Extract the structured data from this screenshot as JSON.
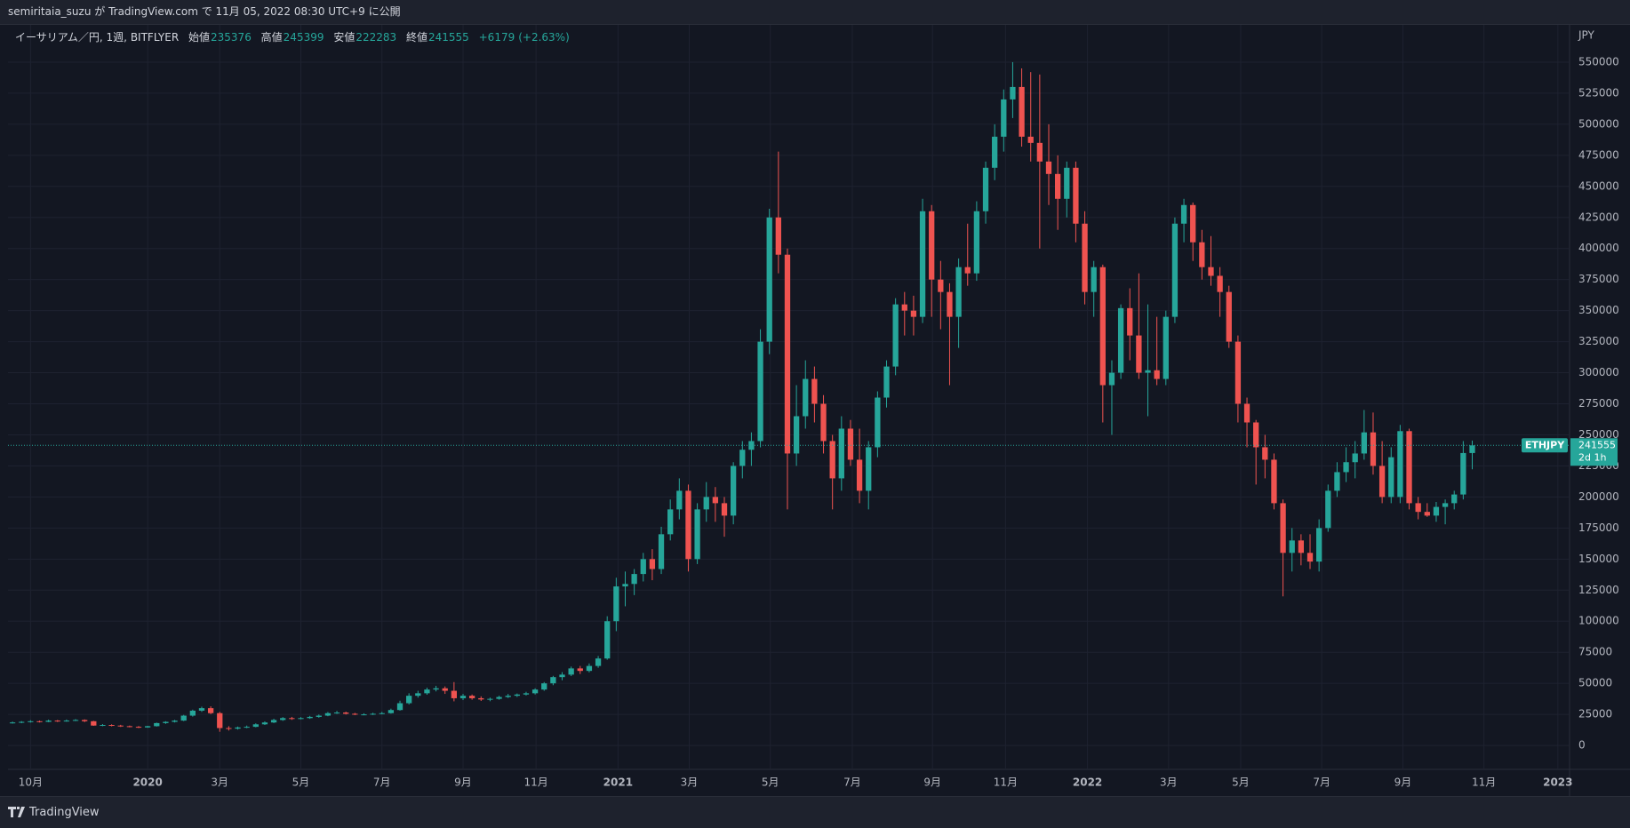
{
  "header": {
    "text": "semiritaia_suzu が TradingView.com で 11月 05, 2022 08:30 UTC+9 に公開"
  },
  "legend": {
    "symbol": "イーサリアム／円, 1週, BITFLYER",
    "open_label": "始値",
    "high_label": "高値",
    "low_label": "安値",
    "close_label": "終値",
    "change": "+6179",
    "change_pct": "(+2.63%)"
  },
  "footer": {
    "brand": "TradingView"
  },
  "chart_data": {
    "type": "candlestick",
    "ticker": "ETHJPY",
    "countdown": "2d 1h",
    "y_unit": "JPY",
    "up_color": "#26a69a",
    "down_color": "#ef5350",
    "ylim": [
      -19250,
      580000
    ],
    "yticks": [
      0,
      25000,
      50000,
      75000,
      100000,
      125000,
      150000,
      175000,
      200000,
      225000,
      250000,
      275000,
      300000,
      325000,
      350000,
      375000,
      400000,
      425000,
      450000,
      475000,
      500000,
      525000,
      550000
    ],
    "xlim": [
      -0.5,
      172.8
    ],
    "xticks": [
      {
        "value": 2.0,
        "label": "10月"
      },
      {
        "value": 15.0,
        "label": "2020"
      },
      {
        "value": 23.0,
        "label": "3月"
      },
      {
        "value": 32.0,
        "label": "5月"
      },
      {
        "value": 41.0,
        "label": "7月"
      },
      {
        "value": 50.0,
        "label": "9月"
      },
      {
        "value": 58.1,
        "label": "11月"
      },
      {
        "value": 67.2,
        "label": "2021"
      },
      {
        "value": 75.1,
        "label": "3月"
      },
      {
        "value": 84.1,
        "label": "5月"
      },
      {
        "value": 93.2,
        "label": "7月"
      },
      {
        "value": 102.1,
        "label": "9月"
      },
      {
        "value": 110.2,
        "label": "11月"
      },
      {
        "value": 119.3,
        "label": "2022"
      },
      {
        "value": 128.3,
        "label": "3月"
      },
      {
        "value": 136.3,
        "label": "5月"
      },
      {
        "value": 145.3,
        "label": "7月"
      },
      {
        "value": 154.3,
        "label": "9月"
      },
      {
        "value": 163.3,
        "label": "11月"
      },
      {
        "value": 171.5,
        "label": "2023"
      }
    ],
    "grid": true,
    "ohlc": [
      [
        18000,
        19200,
        17600,
        18500
      ],
      [
        18500,
        19600,
        17900,
        19000
      ],
      [
        19000,
        20300,
        18400,
        19500
      ],
      [
        19500,
        20000,
        18500,
        19000
      ],
      [
        19000,
        20800,
        18700,
        20000
      ],
      [
        20000,
        20500,
        18900,
        19500
      ],
      [
        19500,
        20900,
        19100,
        20000
      ],
      [
        20000,
        21200,
        19600,
        20500
      ],
      [
        20500,
        21000,
        18800,
        19500
      ],
      [
        19500,
        19800,
        15800,
        16000
      ],
      [
        16000,
        17200,
        15500,
        16500
      ],
      [
        16500,
        17000,
        15400,
        16000
      ],
      [
        16000,
        16600,
        14900,
        15500
      ],
      [
        15500,
        16000,
        14600,
        15000
      ],
      [
        15000,
        15600,
        14000,
        14500
      ],
      [
        14500,
        15800,
        14200,
        15500
      ],
      [
        15500,
        18400,
        15200,
        18000
      ],
      [
        18000,
        19500,
        17400,
        19000
      ],
      [
        19000,
        20600,
        18500,
        20000
      ],
      [
        20000,
        24600,
        19600,
        24000
      ],
      [
        24000,
        28800,
        23200,
        28000
      ],
      [
        28000,
        31200,
        27000,
        30000
      ],
      [
        30000,
        31500,
        25200,
        26000
      ],
      [
        26000,
        27000,
        11000,
        14000
      ],
      [
        14000,
        15500,
        12000,
        13500
      ],
      [
        13500,
        15200,
        12800,
        14500
      ],
      [
        14500,
        16000,
        13900,
        15000
      ],
      [
        15000,
        17800,
        14600,
        17000
      ],
      [
        17000,
        19400,
        16500,
        18500
      ],
      [
        18500,
        21500,
        18000,
        20500
      ],
      [
        20500,
        22800,
        19800,
        22000
      ],
      [
        22000,
        23000,
        20600,
        21500
      ],
      [
        21500,
        22800,
        21000,
        22000
      ],
      [
        22000,
        23800,
        21400,
        23000
      ],
      [
        23000,
        24900,
        22300,
        24000
      ],
      [
        24000,
        26900,
        23500,
        26000
      ],
      [
        26000,
        27800,
        25400,
        26500
      ],
      [
        26500,
        27200,
        24900,
        25500
      ],
      [
        25500,
        26200,
        24400,
        25000
      ],
      [
        25000,
        25900,
        24300,
        25000
      ],
      [
        25000,
        26300,
        24500,
        25500
      ],
      [
        25500,
        27000,
        25000,
        26000
      ],
      [
        26000,
        29600,
        25600,
        28500
      ],
      [
        28500,
        36000,
        28000,
        34000
      ],
      [
        34000,
        42000,
        33000,
        40000
      ],
      [
        40000,
        44000,
        38500,
        42000
      ],
      [
        42000,
        46500,
        40800,
        45000
      ],
      [
        45000,
        48000,
        43500,
        46000
      ],
      [
        46000,
        47500,
        41500,
        44000
      ],
      [
        44000,
        51000,
        35500,
        38000
      ],
      [
        38000,
        41500,
        36500,
        40000
      ],
      [
        40000,
        41000,
        36800,
        38000
      ],
      [
        38000,
        39500,
        35800,
        37000
      ],
      [
        37000,
        38500,
        35600,
        37500
      ],
      [
        37500,
        40000,
        36800,
        39000
      ],
      [
        39000,
        41500,
        38200,
        40000
      ],
      [
        40000,
        41800,
        39000,
        41000
      ],
      [
        41000,
        43200,
        40200,
        42000
      ],
      [
        42000,
        46000,
        41000,
        45000
      ],
      [
        45000,
        51000,
        44000,
        50000
      ],
      [
        50000,
        56000,
        48500,
        55000
      ],
      [
        55000,
        59000,
        52500,
        57000
      ],
      [
        57000,
        63500,
        55800,
        62000
      ],
      [
        62000,
        64000,
        57500,
        60000
      ],
      [
        60000,
        66000,
        58800,
        64000
      ],
      [
        64000,
        72000,
        62500,
        70000
      ],
      [
        70000,
        104000,
        69000,
        100000
      ],
      [
        100000,
        135000,
        92000,
        128000
      ],
      [
        128000,
        140000,
        112000,
        130000
      ],
      [
        130000,
        142000,
        121000,
        138000
      ],
      [
        138000,
        155000,
        132000,
        150000
      ],
      [
        150000,
        158000,
        133000,
        142000
      ],
      [
        142000,
        176000,
        138000,
        170000
      ],
      [
        170000,
        198000,
        165000,
        190000
      ],
      [
        190000,
        215000,
        182000,
        205000
      ],
      [
        205000,
        210000,
        140000,
        150000
      ],
      [
        150000,
        195000,
        146000,
        190000
      ],
      [
        190000,
        212000,
        180000,
        200000
      ],
      [
        200000,
        208000,
        180000,
        195000
      ],
      [
        195000,
        200000,
        168000,
        185000
      ],
      [
        185000,
        228000,
        178000,
        225000
      ],
      [
        225000,
        245000,
        215000,
        238000
      ],
      [
        238000,
        252000,
        225000,
        245000
      ],
      [
        245000,
        335000,
        240000,
        325000
      ],
      [
        325000,
        432000,
        315000,
        425000
      ],
      [
        425000,
        478000,
        380000,
        395000
      ],
      [
        395000,
        400000,
        190000,
        235000
      ],
      [
        235000,
        290000,
        225000,
        265000
      ],
      [
        265000,
        310000,
        255000,
        295000
      ],
      [
        295000,
        305000,
        260000,
        275000
      ],
      [
        275000,
        282000,
        235000,
        245000
      ],
      [
        245000,
        250000,
        190000,
        215000
      ],
      [
        215000,
        265000,
        205000,
        255000
      ],
      [
        255000,
        262000,
        225000,
        230000
      ],
      [
        230000,
        255000,
        195000,
        205000
      ],
      [
        205000,
        245000,
        190000,
        240000
      ],
      [
        240000,
        285000,
        232000,
        280000
      ],
      [
        280000,
        310000,
        272000,
        305000
      ],
      [
        305000,
        360000,
        298000,
        355000
      ],
      [
        355000,
        365000,
        330000,
        350000
      ],
      [
        350000,
        362000,
        330000,
        345000
      ],
      [
        345000,
        440000,
        340000,
        430000
      ],
      [
        430000,
        435000,
        345000,
        375000
      ],
      [
        375000,
        390000,
        335000,
        365000
      ],
      [
        365000,
        372000,
        290000,
        345000
      ],
      [
        345000,
        392000,
        320000,
        385000
      ],
      [
        385000,
        420000,
        370000,
        380000
      ],
      [
        380000,
        438000,
        374000,
        430000
      ],
      [
        430000,
        470000,
        420000,
        465000
      ],
      [
        465000,
        500000,
        455000,
        490000
      ],
      [
        490000,
        528000,
        478000,
        520000
      ],
      [
        520000,
        550000,
        505000,
        530000
      ],
      [
        530000,
        545000,
        482000,
        490000
      ],
      [
        490000,
        542000,
        470000,
        485000
      ],
      [
        485000,
        540000,
        400000,
        470000
      ],
      [
        470000,
        500000,
        435000,
        460000
      ],
      [
        460000,
        475000,
        415000,
        440000
      ],
      [
        440000,
        470000,
        425000,
        465000
      ],
      [
        465000,
        470000,
        405000,
        420000
      ],
      [
        420000,
        430000,
        355000,
        365000
      ],
      [
        365000,
        390000,
        345000,
        385000
      ],
      [
        385000,
        387000,
        260000,
        290000
      ],
      [
        290000,
        310000,
        250000,
        300000
      ],
      [
        300000,
        355000,
        295000,
        352000
      ],
      [
        352000,
        368000,
        310000,
        330000
      ],
      [
        330000,
        380000,
        295000,
        300000
      ],
      [
        300000,
        355000,
        265000,
        302000
      ],
      [
        302000,
        345000,
        290000,
        295000
      ],
      [
        295000,
        350000,
        290000,
        345000
      ],
      [
        345000,
        425000,
        340000,
        420000
      ],
      [
        420000,
        440000,
        405000,
        435000
      ],
      [
        435000,
        437000,
        390000,
        405000
      ],
      [
        405000,
        415000,
        375000,
        385000
      ],
      [
        385000,
        410000,
        370000,
        378000
      ],
      [
        378000,
        385000,
        345000,
        365000
      ],
      [
        365000,
        370000,
        320000,
        325000
      ],
      [
        325000,
        330000,
        260000,
        275000
      ],
      [
        275000,
        280000,
        240000,
        260000
      ],
      [
        260000,
        262000,
        210000,
        240000
      ],
      [
        240000,
        250000,
        215000,
        230000
      ],
      [
        230000,
        235000,
        190000,
        195000
      ],
      [
        195000,
        198000,
        120000,
        155000
      ],
      [
        155000,
        175000,
        140000,
        165000
      ],
      [
        165000,
        170000,
        145000,
        155000
      ],
      [
        155000,
        170000,
        142000,
        148000
      ],
      [
        148000,
        182000,
        140000,
        175000
      ],
      [
        175000,
        210000,
        172000,
        205000
      ],
      [
        205000,
        228000,
        200000,
        220000
      ],
      [
        220000,
        240000,
        212000,
        228000
      ],
      [
        228000,
        245000,
        215000,
        235000
      ],
      [
        235000,
        270000,
        230000,
        252000
      ],
      [
        252000,
        268000,
        218000,
        225000
      ],
      [
        225000,
        245000,
        195000,
        200000
      ],
      [
        200000,
        240000,
        195000,
        232000
      ],
      [
        200000,
        258000,
        195000,
        253000
      ],
      [
        253000,
        255000,
        190000,
        195000
      ],
      [
        195000,
        200000,
        182000,
        188000
      ],
      [
        188000,
        195000,
        184000,
        185000
      ],
      [
        185000,
        196000,
        180000,
        192000
      ],
      [
        192000,
        198000,
        178000,
        195000
      ],
      [
        195000,
        205000,
        190000,
        202000
      ],
      [
        202000,
        245000,
        198000,
        235376
      ],
      [
        235376,
        245399,
        222283,
        241555
      ]
    ]
  }
}
